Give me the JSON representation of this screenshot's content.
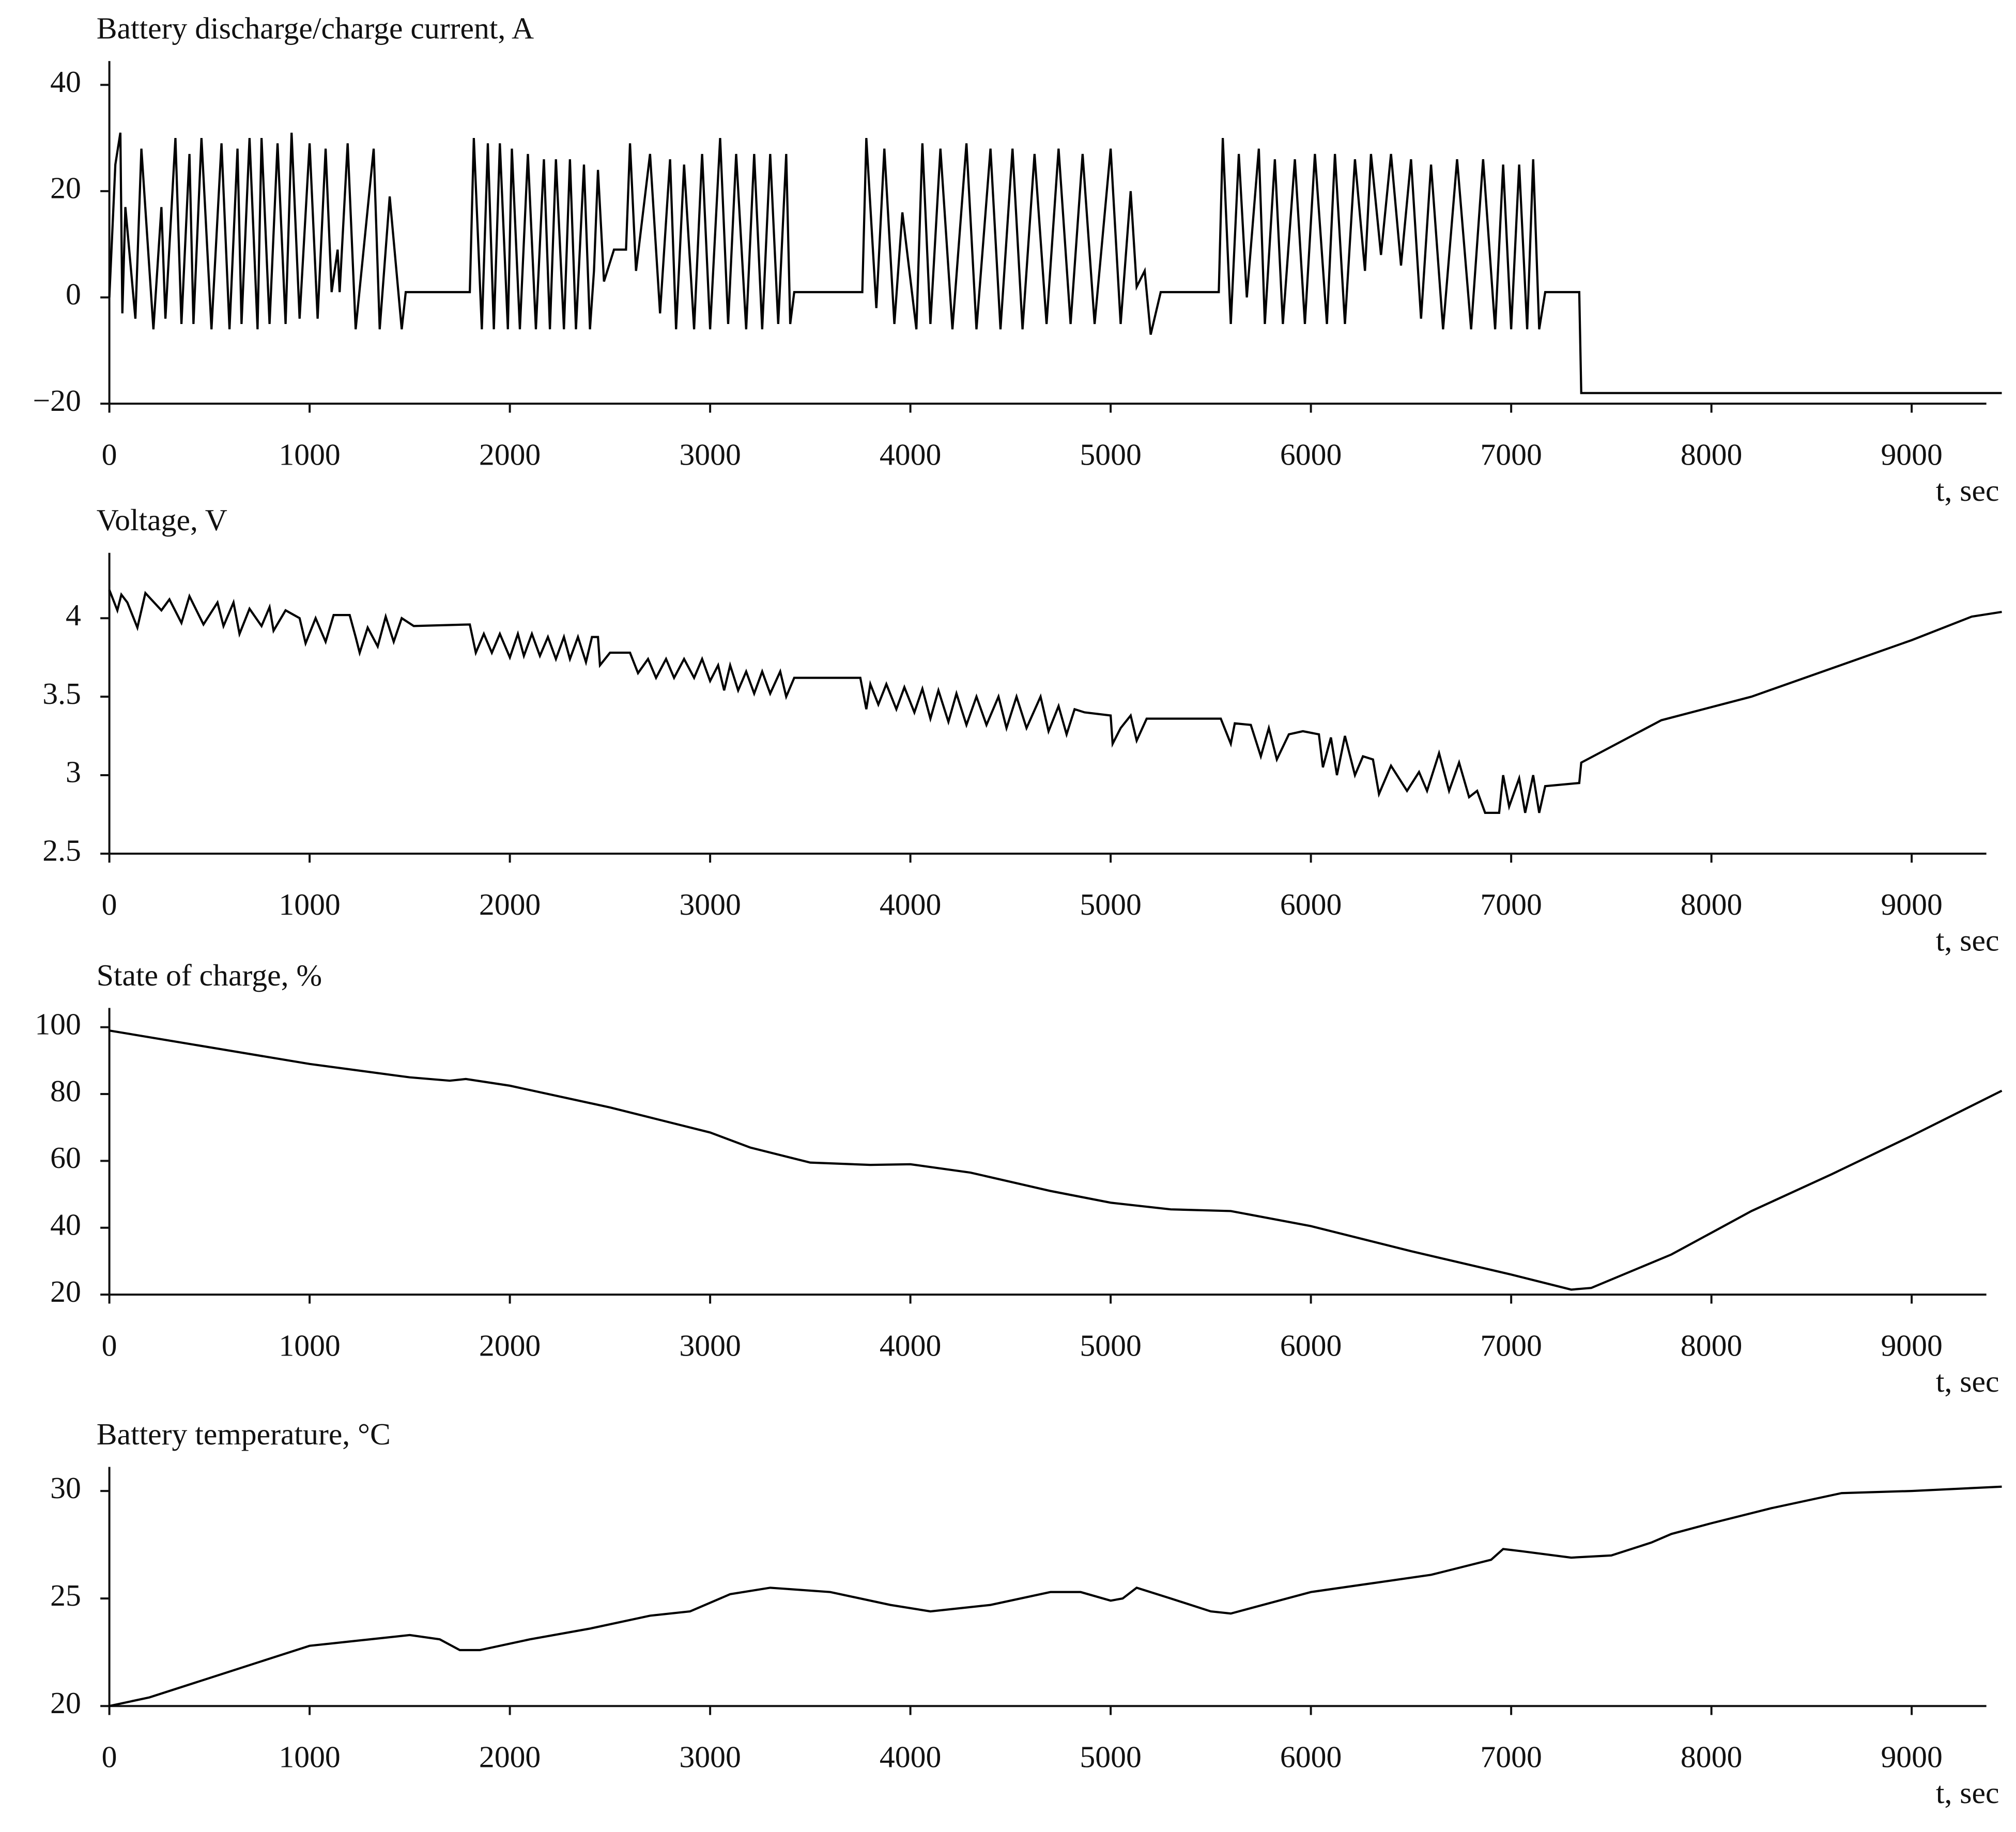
{
  "chart_data": [
    {
      "type": "line",
      "title": "Battery discharge/charge current, A",
      "x_label": "t, sec",
      "x": [
        0,
        30,
        55,
        65,
        80,
        130,
        160,
        220,
        260,
        280,
        330,
        360,
        400,
        420,
        460,
        510,
        560,
        600,
        640,
        660,
        700,
        740,
        760,
        800,
        840,
        880,
        910,
        950,
        1000,
        1040,
        1080,
        1110,
        1140,
        1150,
        1190,
        1230,
        1320,
        1350,
        1400,
        1460,
        1480,
        1800,
        1820,
        1860,
        1890,
        1920,
        1950,
        1990,
        2010,
        2050,
        2090,
        2130,
        2170,
        2200,
        2230,
        2270,
        2300,
        2330,
        2370,
        2400,
        2420,
        2440,
        2470,
        2520,
        2580,
        2600,
        2630,
        2700,
        2750,
        2800,
        2830,
        2870,
        2920,
        2960,
        3000,
        3050,
        3090,
        3130,
        3180,
        3220,
        3260,
        3300,
        3340,
        3380,
        3400,
        3420,
        3760,
        3780,
        3830,
        3870,
        3920,
        3960,
        4030,
        4060,
        4100,
        4150,
        4210,
        4280,
        4330,
        4400,
        4450,
        4510,
        4560,
        4620,
        4680,
        4740,
        4800,
        4860,
        4920,
        5000,
        5050,
        5100,
        5130,
        5170,
        5200,
        5250,
        5540,
        5560,
        5600,
        5640,
        5680,
        5740,
        5770,
        5820,
        5860,
        5920,
        5970,
        6020,
        6080,
        6120,
        6170,
        6220,
        6270,
        6300,
        6350,
        6400,
        6450,
        6500,
        6550,
        6600,
        6660,
        6730,
        6800,
        6860,
        6920,
        6960,
        7000,
        7040,
        7080,
        7110,
        7140,
        7170,
        7340,
        7350,
        9450
      ],
      "series": [
        {
          "color": "#000000",
          "values": [
            0,
            25,
            31,
            -3,
            17,
            -4,
            28,
            -6,
            17,
            -4,
            30,
            -5,
            27,
            -5,
            30,
            -6,
            29,
            -6,
            28,
            -5,
            30,
            -6,
            30,
            -5,
            29,
            -5,
            31,
            -4,
            29,
            -4,
            28,
            1,
            9,
            1,
            29,
            -6,
            28,
            -6,
            19,
            -6,
            1,
            1,
            30,
            -6,
            29,
            -6,
            29,
            -6,
            28,
            -6,
            27,
            -6,
            26,
            -6,
            26,
            -6,
            26,
            -6,
            25,
            -6,
            5,
            24,
            3,
            9,
            9,
            29,
            5,
            27,
            -3,
            26,
            -6,
            25,
            -6,
            27,
            -6,
            30,
            -5,
            27,
            -6,
            27,
            -6,
            27,
            -5,
            27,
            -5,
            1,
            1,
            30,
            -2,
            28,
            -5,
            16,
            -6,
            29,
            -5,
            28,
            -6,
            29,
            -6,
            28,
            -6,
            28,
            -6,
            27,
            -5,
            28,
            -5,
            27,
            -5,
            28,
            -5,
            20,
            2,
            5,
            -7,
            1,
            1,
            30,
            -5,
            27,
            0,
            28,
            -5,
            26,
            -5,
            26,
            -5,
            27,
            -5,
            27,
            -5,
            26,
            5,
            27,
            8,
            27,
            6,
            26,
            -4,
            25,
            -6,
            26,
            -6,
            26,
            -6,
            25,
            -6,
            25,
            -6,
            26,
            -6,
            1,
            1,
            -18,
            -18
          ]
        }
      ],
      "xlim": [
        0,
        9450
      ],
      "xticks": [
        0,
        1000,
        2000,
        3000,
        4000,
        5000,
        6000,
        7000,
        8000,
        9000
      ],
      "ylim": [
        -20,
        44
      ],
      "yticks": [
        {
          "value": -20,
          "label": "−20"
        },
        0,
        20,
        40
      ]
    },
    {
      "type": "line",
      "title": "Voltage, V",
      "x_label": "t, sec",
      "x": [
        0,
        40,
        60,
        90,
        140,
        180,
        260,
        300,
        360,
        400,
        470,
        540,
        570,
        620,
        650,
        700,
        760,
        800,
        820,
        880,
        950,
        980,
        1030,
        1080,
        1120,
        1200,
        1230,
        1250,
        1290,
        1340,
        1380,
        1420,
        1460,
        1520,
        1800,
        1830,
        1870,
        1910,
        1950,
        2000,
        2040,
        2070,
        2110,
        2150,
        2190,
        2230,
        2270,
        2300,
        2340,
        2380,
        2410,
        2440,
        2450,
        2500,
        2600,
        2640,
        2690,
        2730,
        2780,
        2820,
        2870,
        2920,
        2960,
        3000,
        3040,
        3070,
        3100,
        3140,
        3180,
        3220,
        3260,
        3300,
        3350,
        3380,
        3420,
        3750,
        3780,
        3800,
        3840,
        3880,
        3930,
        3970,
        4020,
        4060,
        4100,
        4140,
        4190,
        4230,
        4280,
        4330,
        4380,
        4440,
        4480,
        4530,
        4580,
        4650,
        4690,
        4740,
        4780,
        4820,
        4870,
        5000,
        5010,
        5050,
        5100,
        5130,
        5180,
        5550,
        5600,
        5620,
        5700,
        5750,
        5790,
        5830,
        5890,
        5960,
        6040,
        6060,
        6100,
        6130,
        6170,
        6220,
        6260,
        6310,
        6340,
        6400,
        6480,
        6540,
        6580,
        6640,
        6690,
        6740,
        6790,
        6830,
        6870,
        6940,
        6960,
        6990,
        7040,
        7070,
        7110,
        7140,
        7170,
        7340,
        7350,
        7750,
        8200,
        9000,
        9300,
        9450
      ],
      "series": [
        {
          "color": "#000000",
          "values": [
            4.18,
            4.05,
            4.15,
            4.1,
            3.94,
            4.16,
            4.05,
            4.12,
            3.97,
            4.14,
            3.96,
            4.1,
            3.95,
            4.1,
            3.9,
            4.06,
            3.95,
            4.07,
            3.92,
            4.05,
            4.0,
            3.84,
            4.0,
            3.85,
            4.02,
            4.02,
            3.88,
            3.78,
            3.94,
            3.82,
            4.01,
            3.85,
            4.0,
            3.95,
            3.96,
            3.78,
            3.9,
            3.78,
            3.9,
            3.75,
            3.9,
            3.76,
            3.9,
            3.76,
            3.88,
            3.74,
            3.88,
            3.74,
            3.88,
            3.72,
            3.88,
            3.88,
            3.7,
            3.78,
            3.78,
            3.65,
            3.74,
            3.62,
            3.74,
            3.62,
            3.74,
            3.62,
            3.74,
            3.6,
            3.7,
            3.54,
            3.7,
            3.54,
            3.66,
            3.52,
            3.66,
            3.52,
            3.66,
            3.5,
            3.62,
            3.62,
            3.42,
            3.58,
            3.45,
            3.58,
            3.42,
            3.56,
            3.4,
            3.55,
            3.36,
            3.54,
            3.34,
            3.52,
            3.32,
            3.5,
            3.32,
            3.5,
            3.3,
            3.5,
            3.3,
            3.5,
            3.28,
            3.44,
            3.26,
            3.42,
            3.4,
            3.38,
            3.2,
            3.3,
            3.38,
            3.22,
            3.36,
            3.36,
            3.2,
            3.33,
            3.32,
            3.12,
            3.3,
            3.1,
            3.26,
            3.28,
            3.26,
            3.05,
            3.24,
            3.0,
            3.25,
            3.0,
            3.12,
            3.1,
            2.88,
            3.06,
            2.9,
            3.02,
            2.9,
            3.14,
            2.9,
            3.08,
            2.86,
            2.9,
            2.76,
            2.76,
            3.0,
            2.8,
            2.98,
            2.76,
            3.0,
            2.76,
            2.93,
            2.95,
            3.08,
            3.35,
            3.5,
            3.86,
            4.01,
            4.04
          ]
        }
      ],
      "xlim": [
        0,
        9450
      ],
      "xticks": [
        0,
        1000,
        2000,
        3000,
        4000,
        5000,
        6000,
        7000,
        8000,
        9000
      ],
      "ylim": [
        2.5,
        4.4
      ],
      "yticks": [
        2.5,
        3,
        3.5,
        4
      ]
    },
    {
      "type": "line",
      "title": "State of charge, %",
      "x_label": "t, sec",
      "x": [
        0,
        500,
        1000,
        1500,
        1700,
        1780,
        2000,
        2500,
        3000,
        3200,
        3500,
        3800,
        4000,
        4300,
        4700,
        5000,
        5300,
        5600,
        6000,
        6500,
        7000,
        7300,
        7400,
        7800,
        8000,
        8200,
        8600,
        9000,
        9450
      ],
      "series": [
        {
          "color": "#000000",
          "values": [
            99,
            94,
            89,
            85,
            84,
            84.5,
            82.5,
            76,
            68.5,
            64,
            59.5,
            58.8,
            59,
            56.5,
            51,
            47.5,
            45.5,
            45,
            40.5,
            33,
            26,
            21.5,
            22,
            32,
            38.5,
            45,
            56,
            67.5,
            81
          ]
        }
      ],
      "xlim": [
        0,
        9450
      ],
      "xticks": [
        0,
        1000,
        2000,
        3000,
        4000,
        5000,
        6000,
        7000,
        8000,
        9000
      ],
      "ylim": [
        20,
        105
      ],
      "yticks": [
        20,
        40,
        60,
        80,
        100
      ]
    },
    {
      "type": "line",
      "title": "Battery temperature, °C",
      "x_label": "t, sec",
      "x": [
        0,
        200,
        500,
        800,
        1000,
        1200,
        1300,
        1500,
        1650,
        1750,
        1850,
        2100,
        2400,
        2700,
        2900,
        3100,
        3300,
        3600,
        3900,
        4100,
        4400,
        4700,
        4850,
        5000,
        5060,
        5130,
        5300,
        5500,
        5600,
        5800,
        6000,
        6300,
        6600,
        6900,
        6960,
        7050,
        7300,
        7500,
        7700,
        7800,
        8000,
        8300,
        8650,
        9000,
        9450
      ],
      "series": [
        {
          "color": "#000000",
          "values": [
            20,
            20.4,
            21.3,
            22.2,
            22.8,
            23.0,
            23.1,
            23.3,
            23.1,
            22.6,
            22.6,
            23.1,
            23.6,
            24.2,
            24.4,
            25.2,
            25.5,
            25.3,
            24.7,
            24.4,
            24.7,
            25.3,
            25.3,
            24.9,
            25.0,
            25.5,
            25.0,
            24.4,
            24.3,
            24.8,
            25.3,
            25.7,
            26.1,
            26.8,
            27.3,
            27.2,
            26.9,
            27.0,
            27.6,
            28.0,
            28.5,
            29.2,
            29.9,
            30.0,
            30.2
          ]
        }
      ],
      "xlim": [
        0,
        9450
      ],
      "xticks": [
        0,
        1000,
        2000,
        3000,
        4000,
        5000,
        6000,
        7000,
        8000,
        9000
      ],
      "ylim": [
        20,
        31
      ],
      "yticks": [
        20,
        25,
        30
      ]
    }
  ]
}
